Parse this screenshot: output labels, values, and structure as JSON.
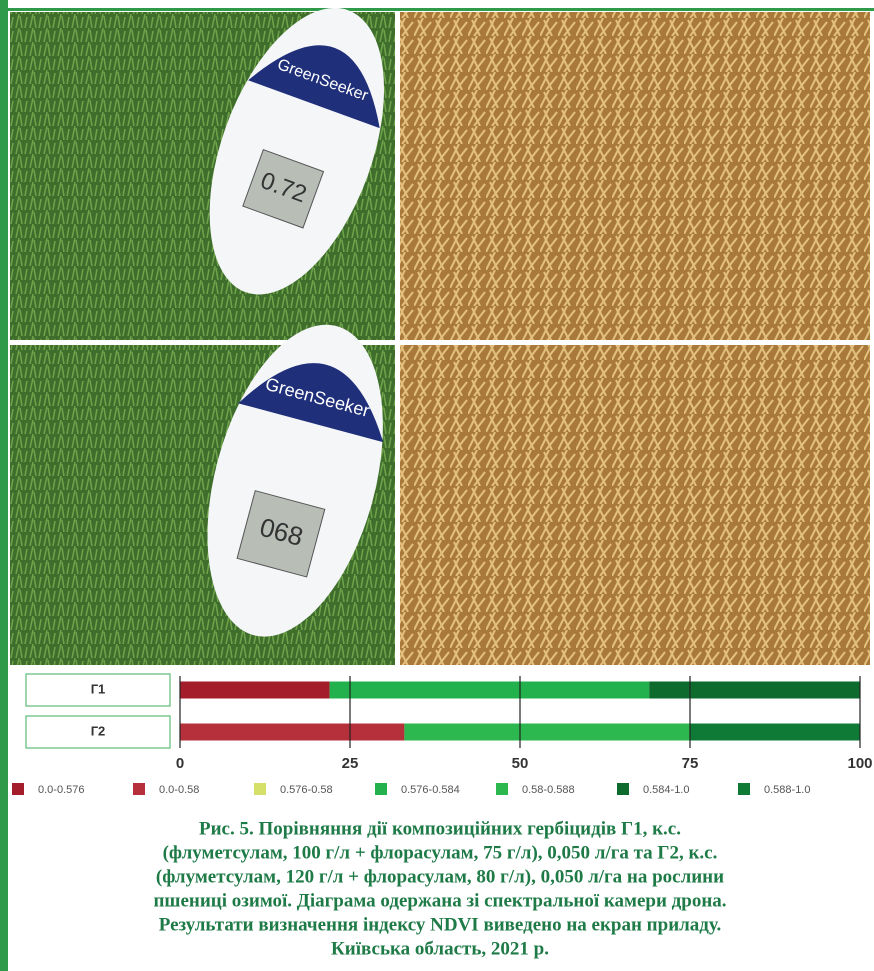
{
  "photos": [
    {
      "brand": "GreenSeeker",
      "reading": "0.72"
    },
    {
      "brand": "GreenSeeker",
      "reading": "068"
    }
  ],
  "chart_data": {
    "type": "stacked-barh",
    "categories": [
      "Г1",
      "Г2"
    ],
    "series": [
      {
        "name": "0.0-0.576",
        "color": "#a31d2a",
        "values": [
          22,
          0
        ]
      },
      {
        "name": "0.0-0.58",
        "color": "#b5303a",
        "values": [
          0,
          33
        ]
      },
      {
        "name": "0.576-0.58",
        "color": "#d4e06a",
        "values": [
          0,
          0
        ]
      },
      {
        "name": "0.576-0.584",
        "color": "#22b14c",
        "values": [
          47,
          0
        ]
      },
      {
        "name": "0.58-0.588",
        "color": "#2db84f",
        "values": [
          0,
          42
        ]
      },
      {
        "name": "0.584-1.0",
        "color": "#0d6b2e",
        "values": [
          31,
          0
        ]
      },
      {
        "name": "0.588-1.0",
        "color": "#0f7a35",
        "values": [
          0,
          25
        ]
      }
    ],
    "xlim": [
      0,
      100
    ],
    "xticks": [
      0,
      25,
      50,
      75,
      100
    ],
    "grid": true
  },
  "caption": [
    "Рис. 5. Порівняння дії композиційних гербіцидів Г1, к.с.",
    "(флуметсулам, 100 г/л + флорасулам, 75 г/л), 0,050 л/га та Г2, к.с.",
    "(флуметсулам, 120 г/л + флорасулам, 80 г/л), 0,050 л/га на рослини",
    "пшениці озимої. Діаграма одержана зі спектральної камери дрона.",
    "Результати визначення індексу NDVI виведено на екран приладу.",
    "Київська область, 2021 р."
  ]
}
